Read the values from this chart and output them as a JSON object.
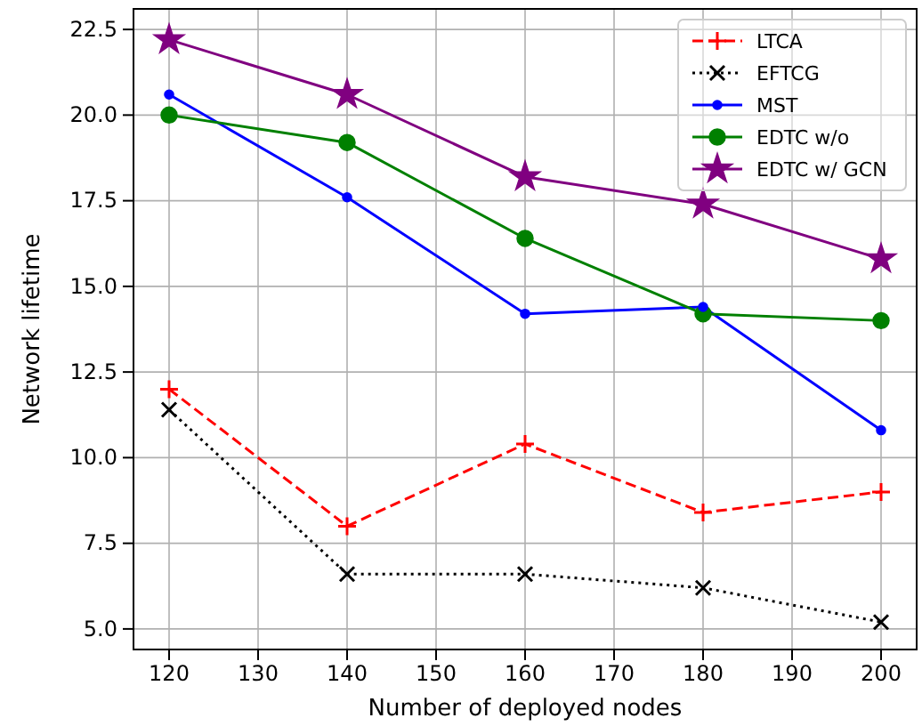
{
  "chart_data": {
    "type": "line",
    "xlabel": "Number of deployed nodes",
    "ylabel": "Network lifetime",
    "x": [
      120,
      140,
      160,
      180,
      200
    ],
    "xlim": [
      116,
      204
    ],
    "xticks": [
      120,
      130,
      140,
      150,
      160,
      170,
      180,
      190,
      200
    ],
    "ylim": [
      4.4,
      23.1
    ],
    "yticks": [
      {
        "value": 5,
        "label": "5.0"
      },
      {
        "value": 7.5,
        "label": "7.5"
      },
      {
        "value": 10,
        "label": "10.0"
      },
      {
        "value": 12.5,
        "label": "12.5"
      },
      {
        "value": 15,
        "label": "15.0"
      },
      {
        "value": 17.5,
        "label": "17.5"
      },
      {
        "value": 20,
        "label": "20.0"
      },
      {
        "value": 22.5,
        "label": "22.5"
      }
    ],
    "grid": true,
    "legend": "top right",
    "series": [
      {
        "name": "LTCA",
        "color": "#ff0000",
        "marker": "plus",
        "line_style": "dashed",
        "values": [
          12.0,
          8.0,
          10.4,
          8.4,
          9.0
        ]
      },
      {
        "name": "EFTCG",
        "color": "#000000",
        "marker": "cross",
        "line_style": "dotted",
        "values": [
          11.4,
          6.6,
          6.6,
          6.2,
          5.2
        ]
      },
      {
        "name": "MST",
        "color": "#0000ff",
        "marker": "circle-small",
        "line_style": "solid",
        "values": [
          20.6,
          17.6,
          14.2,
          14.4,
          10.8
        ]
      },
      {
        "name": "EDTC w/o",
        "color": "#008000",
        "marker": "circle",
        "line_style": "solid",
        "values": [
          20.0,
          19.2,
          16.4,
          14.2,
          14.0
        ]
      },
      {
        "name": "EDTC w/ GCN",
        "color": "#800080",
        "marker": "star",
        "line_style": "solid",
        "values": [
          22.2,
          20.6,
          18.2,
          17.4,
          15.8
        ]
      }
    ]
  }
}
